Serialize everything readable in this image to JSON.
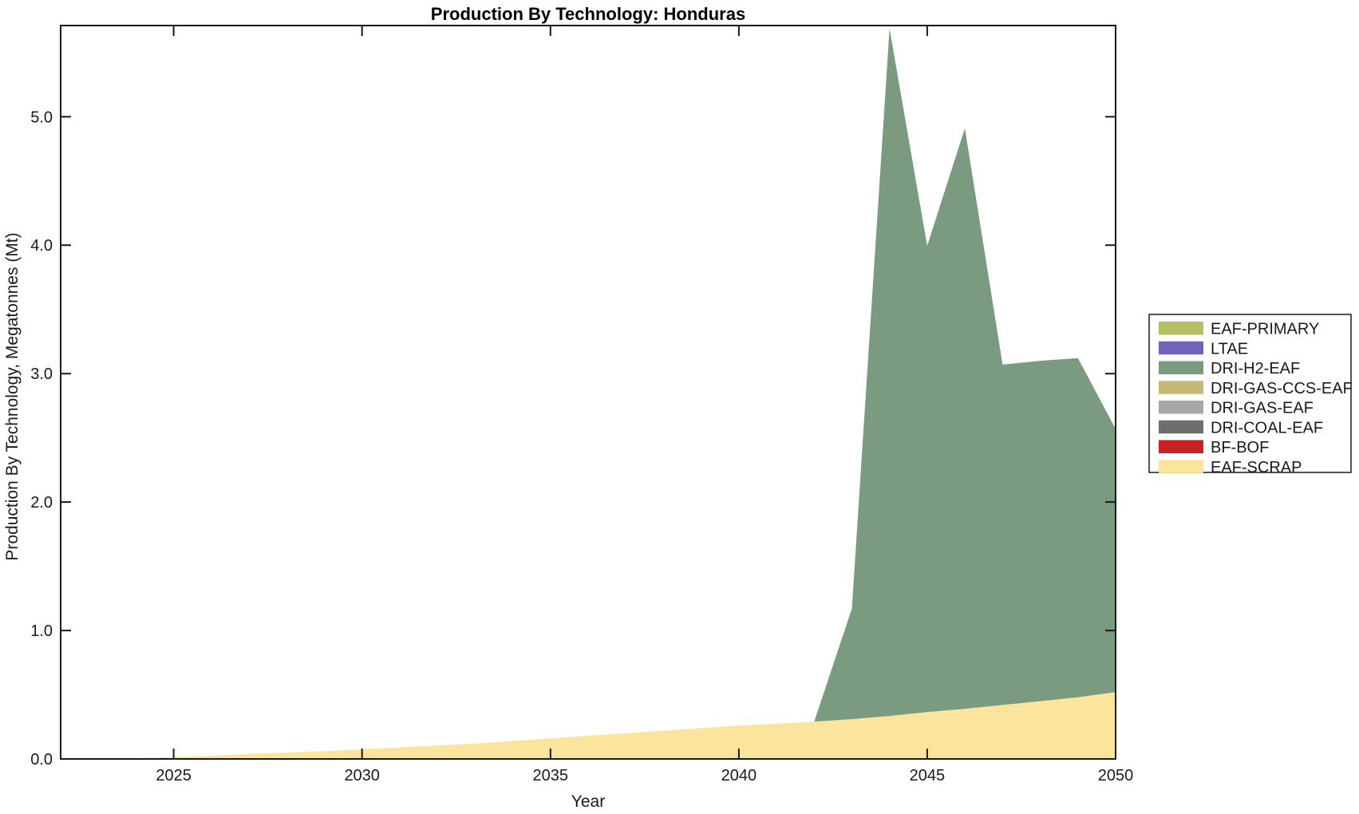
{
  "chart_data": {
    "type": "area",
    "stacked": true,
    "title": "Production By Technology: Honduras",
    "xlabel": "Year",
    "ylabel": "Production By Technology, Megatonnes (Mt)",
    "x": [
      2022,
      2023,
      2024,
      2025,
      2026,
      2027,
      2028,
      2029,
      2030,
      2031,
      2032,
      2033,
      2034,
      2035,
      2036,
      2037,
      2038,
      2039,
      2040,
      2041,
      2042,
      2043,
      2044,
      2045,
      2046,
      2047,
      2048,
      2049,
      2050
    ],
    "series": [
      {
        "name": "EAF-SCRAP",
        "color": "#FBE49B",
        "values": [
          0,
          0,
          0.005,
          0.015,
          0.025,
          0.04,
          0.05,
          0.06,
          0.075,
          0.09,
          0.105,
          0.12,
          0.14,
          0.16,
          0.18,
          0.2,
          0.22,
          0.24,
          0.26,
          0.275,
          0.29,
          0.31,
          0.335,
          0.365,
          0.39,
          0.42,
          0.45,
          0.48,
          0.52
        ]
      },
      {
        "name": "BF-BOF",
        "color": "#C72323",
        "values": [
          0,
          0,
          0,
          0,
          0,
          0,
          0,
          0,
          0,
          0,
          0,
          0,
          0,
          0,
          0,
          0,
          0,
          0,
          0,
          0,
          0,
          0,
          0,
          0,
          0,
          0,
          0,
          0,
          0
        ]
      },
      {
        "name": "DRI-COAL-EAF",
        "color": "#6E6E6E",
        "values": [
          0,
          0,
          0,
          0,
          0,
          0,
          0,
          0,
          0,
          0,
          0,
          0,
          0,
          0,
          0,
          0,
          0,
          0,
          0,
          0,
          0,
          0,
          0,
          0,
          0,
          0,
          0,
          0,
          0
        ]
      },
      {
        "name": "DRI-GAS-EAF",
        "color": "#A8A8A8",
        "values": [
          0,
          0,
          0,
          0,
          0,
          0,
          0,
          0,
          0,
          0,
          0,
          0,
          0,
          0,
          0,
          0,
          0,
          0,
          0,
          0,
          0,
          0,
          0,
          0,
          0,
          0,
          0,
          0,
          0
        ]
      },
      {
        "name": "DRI-GAS-CCS-EAF",
        "color": "#C3BB72",
        "values": [
          0,
          0,
          0,
          0,
          0,
          0,
          0,
          0,
          0,
          0,
          0,
          0,
          0,
          0,
          0,
          0,
          0,
          0,
          0,
          0,
          0,
          0,
          0,
          0,
          0,
          0,
          0,
          0,
          0
        ]
      },
      {
        "name": "DRI-H2-EAF",
        "color": "#7A9B80",
        "values": [
          0,
          0,
          0,
          0,
          0,
          0,
          0,
          0,
          0,
          0,
          0,
          0,
          0,
          0,
          0,
          0,
          0,
          0,
          0,
          0,
          0,
          0.86,
          5.35,
          3.63,
          4.52,
          2.65,
          2.65,
          2.64,
          2.05
        ]
      },
      {
        "name": "LTAE",
        "color": "#7163BC",
        "values": [
          0,
          0,
          0,
          0,
          0,
          0,
          0,
          0,
          0,
          0,
          0,
          0,
          0,
          0,
          0,
          0,
          0,
          0,
          0,
          0,
          0,
          0,
          0,
          0,
          0,
          0,
          0,
          0,
          0
        ]
      },
      {
        "name": "EAF-PRIMARY",
        "color": "#B5C065",
        "values": [
          0,
          0,
          0,
          0,
          0,
          0,
          0,
          0,
          0,
          0,
          0,
          0,
          0,
          0,
          0,
          0,
          0,
          0,
          0,
          0,
          0,
          0,
          0,
          0,
          0,
          0,
          0,
          0,
          0
        ]
      }
    ],
    "legend": {
      "position": "right",
      "entries_top_to_bottom": [
        "EAF-PRIMARY",
        "LTAE",
        "DRI-H2-EAF",
        "DRI-GAS-CCS-EAF",
        "DRI-GAS-EAF",
        "DRI-COAL-EAF",
        "BF-BOF",
        "EAF-SCRAP"
      ]
    },
    "xticks": [
      2025,
      2030,
      2035,
      2040,
      2045,
      2050
    ],
    "yticks": [
      0,
      1,
      2,
      3,
      4,
      5
    ],
    "ytick_labels": [
      "0.0",
      "1.0",
      "2.0",
      "3.0",
      "4.0",
      "5.0"
    ],
    "xlim": [
      2022,
      2050
    ],
    "ylim": [
      0,
      5.71
    ],
    "grid": false,
    "background": "#FFFFFF",
    "axis_color": "#1A1A1A"
  }
}
